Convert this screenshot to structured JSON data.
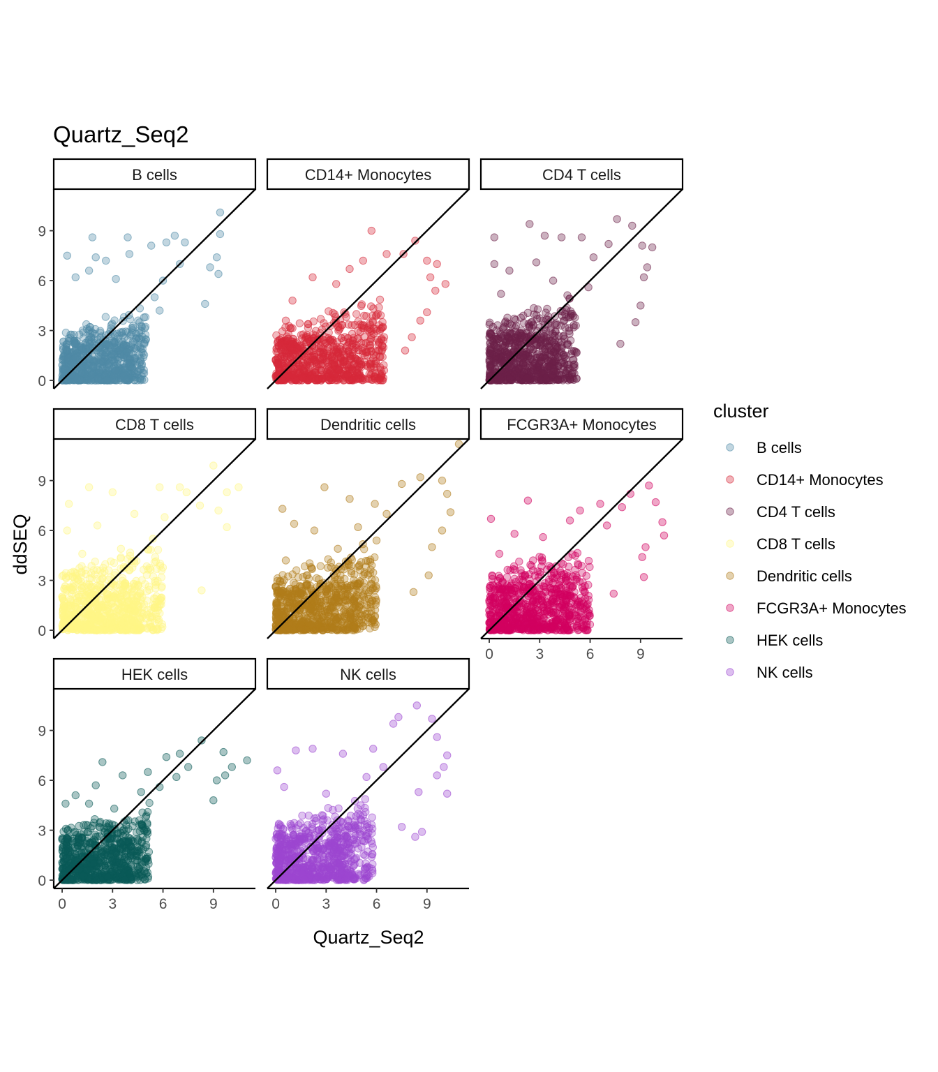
{
  "chart_data": {
    "type": "scatter",
    "title": "Quartz_Seq2",
    "xlabel": "Quartz_Seq2",
    "ylabel": "ddSEQ",
    "xlim": [
      -0.5,
      11.5
    ],
    "ylim": [
      -0.5,
      11.5
    ],
    "x_ticks": [
      0,
      3,
      6,
      9
    ],
    "y_ticks": [
      0,
      3,
      6,
      9
    ],
    "reference_line": "y = x",
    "grid": false,
    "legend": {
      "title": "cluster",
      "placement": "right"
    },
    "facets": [
      {
        "name": "B cells",
        "color": "#4f8aa6",
        "bulk": {
          "max_x": 5.0,
          "max_y": 3.0,
          "n": 420
        },
        "highlights": [
          [
            0.3,
            7.5
          ],
          [
            1.8,
            8.6
          ],
          [
            2.0,
            7.4
          ],
          [
            3.9,
            8.6
          ],
          [
            5.3,
            8.1
          ],
          [
            6.2,
            8.3
          ],
          [
            6.7,
            8.7
          ],
          [
            7.3,
            8.3
          ],
          [
            9.4,
            10.1
          ],
          [
            9.4,
            8.8
          ],
          [
            9.2,
            7.4
          ],
          [
            8.8,
            6.8
          ],
          [
            9.3,
            6.4
          ],
          [
            8.5,
            4.6
          ],
          [
            5.5,
            5.0
          ],
          [
            4.4,
            2.5
          ],
          [
            2.6,
            7.2
          ],
          [
            4.0,
            7.6
          ],
          [
            0.8,
            6.2
          ],
          [
            1.6,
            6.6
          ],
          [
            3.2,
            6.1
          ],
          [
            6.0,
            6.0
          ],
          [
            7.0,
            7.0
          ],
          [
            5.8,
            4.2
          ]
        ]
      },
      {
        "name": "CD14+ Monocytes",
        "color": "#d62839",
        "bulk": {
          "max_x": 6.5,
          "max_y": 3.2,
          "n": 420
        },
        "highlights": [
          [
            5.7,
            9.0
          ],
          [
            8.3,
            8.4
          ],
          [
            7.6,
            7.6
          ],
          [
            9.0,
            7.2
          ],
          [
            9.6,
            7.0
          ],
          [
            9.2,
            6.2
          ],
          [
            10.1,
            5.8
          ],
          [
            9.5,
            5.4
          ],
          [
            9.0,
            4.1
          ],
          [
            8.6,
            3.6
          ],
          [
            8.1,
            2.6
          ],
          [
            7.7,
            1.8
          ],
          [
            4.4,
            6.7
          ],
          [
            2.2,
            6.2
          ],
          [
            1.0,
            4.8
          ],
          [
            5.2,
            7.2
          ],
          [
            6.6,
            7.6
          ],
          [
            3.6,
            5.8
          ],
          [
            0.6,
            3.6
          ],
          [
            5.6,
            1.0
          ]
        ]
      },
      {
        "name": "CD4 T cells",
        "color": "#6b2048",
        "bulk": {
          "max_x": 5.2,
          "max_y": 3.6,
          "n": 420
        },
        "highlights": [
          [
            0.3,
            8.6
          ],
          [
            2.4,
            9.4
          ],
          [
            3.3,
            8.7
          ],
          [
            4.3,
            8.6
          ],
          [
            5.5,
            8.6
          ],
          [
            7.6,
            9.7
          ],
          [
            8.5,
            9.3
          ],
          [
            9.1,
            8.1
          ],
          [
            9.7,
            8.0
          ],
          [
            9.4,
            6.8
          ],
          [
            9.2,
            6.2
          ],
          [
            9.0,
            4.5
          ],
          [
            8.7,
            3.5
          ],
          [
            7.8,
            2.2
          ],
          [
            0.3,
            7.0
          ],
          [
            1.2,
            6.6
          ],
          [
            2.8,
            7.1
          ],
          [
            6.2,
            7.4
          ],
          [
            7.1,
            8.2
          ],
          [
            0.7,
            5.2
          ],
          [
            3.8,
            6.0
          ],
          [
            5.9,
            5.6
          ]
        ]
      },
      {
        "name": "CD8 T cells",
        "color": "#fff685",
        "bulk": {
          "max_x": 6.0,
          "max_y": 3.6,
          "n": 420
        },
        "highlights": [
          [
            0.4,
            7.6
          ],
          [
            1.6,
            8.6
          ],
          [
            3.0,
            8.3
          ],
          [
            5.8,
            8.6
          ],
          [
            7.0,
            8.6
          ],
          [
            7.4,
            8.3
          ],
          [
            9.0,
            9.9
          ],
          [
            10.5,
            8.6
          ],
          [
            9.8,
            8.3
          ],
          [
            9.3,
            7.2
          ],
          [
            9.8,
            6.2
          ],
          [
            8.3,
            2.4
          ],
          [
            4.5,
            0.1
          ],
          [
            0.3,
            6.0
          ],
          [
            2.1,
            6.3
          ],
          [
            4.3,
            7.0
          ],
          [
            6.1,
            6.8
          ],
          [
            8.2,
            7.5
          ],
          [
            1.2,
            4.6
          ],
          [
            3.5,
            4.9
          ],
          [
            5.4,
            5.5
          ]
        ]
      },
      {
        "name": "Dendritic cells",
        "color": "#b07c1a",
        "bulk": {
          "max_x": 6.0,
          "max_y": 3.4,
          "n": 420
        },
        "highlights": [
          [
            0.4,
            7.3
          ],
          [
            2.9,
            8.6
          ],
          [
            4.4,
            7.9
          ],
          [
            5.9,
            7.6
          ],
          [
            7.5,
            8.8
          ],
          [
            8.6,
            9.2
          ],
          [
            9.9,
            9.0
          ],
          [
            10.9,
            11.2
          ],
          [
            10.2,
            8.2
          ],
          [
            10.4,
            7.1
          ],
          [
            9.9,
            6.0
          ],
          [
            9.3,
            5.0
          ],
          [
            9.1,
            3.3
          ],
          [
            8.2,
            2.3
          ],
          [
            1.1,
            6.4
          ],
          [
            2.3,
            6.0
          ],
          [
            4.9,
            6.2
          ],
          [
            6.6,
            7.0
          ],
          [
            3.7,
            4.9
          ],
          [
            6.0,
            5.4
          ],
          [
            0.6,
            4.2
          ]
        ]
      },
      {
        "name": "FCGR3A+ Monocytes",
        "color": "#d1005f",
        "bulk": {
          "max_x": 6.0,
          "max_y": 3.6,
          "n": 420
        },
        "highlights": [
          [
            0.1,
            6.7
          ],
          [
            2.3,
            7.8
          ],
          [
            5.4,
            7.2
          ],
          [
            6.6,
            7.6
          ],
          [
            7.9,
            7.4
          ],
          [
            8.4,
            8.2
          ],
          [
            9.5,
            8.7
          ],
          [
            9.9,
            7.7
          ],
          [
            10.3,
            6.5
          ],
          [
            10.4,
            5.7
          ],
          [
            9.3,
            5.0
          ],
          [
            9.1,
            4.4
          ],
          [
            9.2,
            3.2
          ],
          [
            7.4,
            2.2
          ],
          [
            5.5,
            0.2
          ],
          [
            1.5,
            5.8
          ],
          [
            3.2,
            5.6
          ],
          [
            4.8,
            6.6
          ],
          [
            7.0,
            6.3
          ],
          [
            0.6,
            4.6
          ],
          [
            2.6,
            4.2
          ]
        ]
      },
      {
        "name": "HEK cells",
        "color": "#0a5a57",
        "bulk": {
          "max_x": 5.2,
          "max_y": 3.2,
          "n": 420
        },
        "highlights": [
          [
            0.2,
            4.6
          ],
          [
            1.6,
            4.6
          ],
          [
            2.0,
            5.7
          ],
          [
            2.4,
            7.1
          ],
          [
            3.6,
            6.3
          ],
          [
            5.1,
            6.5
          ],
          [
            6.2,
            7.4
          ],
          [
            7.0,
            7.6
          ],
          [
            8.3,
            8.4
          ],
          [
            9.6,
            7.7
          ],
          [
            10.1,
            6.8
          ],
          [
            11.0,
            7.2
          ],
          [
            9.2,
            6.0
          ],
          [
            9.0,
            4.8
          ],
          [
            9.7,
            6.3
          ],
          [
            4.7,
            5.3
          ],
          [
            5.8,
            5.6
          ],
          [
            0.8,
            5.1
          ],
          [
            3.1,
            4.3
          ],
          [
            6.8,
            6.2
          ],
          [
            7.5,
            6.8
          ],
          [
            4.0,
            0.4
          ],
          [
            5.0,
            2.1
          ]
        ]
      },
      {
        "name": "NK cells",
        "color": "#9c46d0",
        "bulk": {
          "max_x": 5.8,
          "max_y": 3.4,
          "n": 420
        },
        "highlights": [
          [
            0.1,
            6.6
          ],
          [
            1.2,
            7.8
          ],
          [
            2.2,
            7.9
          ],
          [
            4.0,
            7.6
          ],
          [
            5.8,
            7.9
          ],
          [
            7.0,
            9.4
          ],
          [
            7.3,
            9.8
          ],
          [
            8.4,
            10.5
          ],
          [
            9.3,
            9.7
          ],
          [
            9.6,
            8.6
          ],
          [
            10.2,
            7.5
          ],
          [
            10.0,
            6.8
          ],
          [
            9.6,
            6.3
          ],
          [
            10.2,
            5.2
          ],
          [
            8.5,
            5.3
          ],
          [
            8.7,
            2.9
          ],
          [
            8.3,
            2.6
          ],
          [
            7.5,
            3.2
          ],
          [
            4.6,
            0.1
          ],
          [
            0.5,
            5.6
          ],
          [
            3.0,
            5.2
          ],
          [
            5.4,
            6.2
          ],
          [
            6.4,
            6.8
          ]
        ]
      }
    ]
  }
}
